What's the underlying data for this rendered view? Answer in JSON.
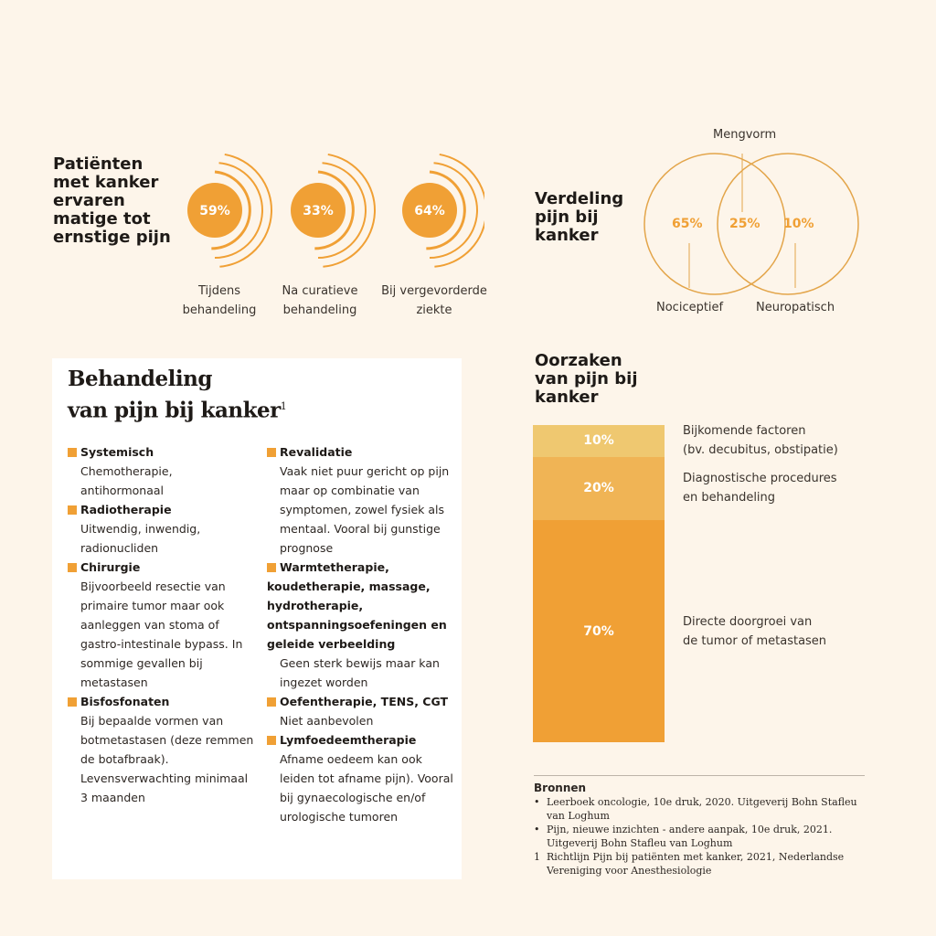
{
  "prevalence": {
    "title": "Patiënten met kanker ervaren matige tot ernstige pijn",
    "items": [
      {
        "value": "59%",
        "label": "Tijdens behandeling"
      },
      {
        "value": "33%",
        "label": "Na curatieve behandeling"
      },
      {
        "value": "64%",
        "label": "Bij vergevorderde ziekte"
      }
    ]
  },
  "distribution": {
    "title": "Verdeling pijn bij kanker",
    "left": {
      "value": "65%",
      "label": "Nociceptief"
    },
    "middle": {
      "value": "25%",
      "label": "Mengvorm"
    },
    "right": {
      "value": "10%",
      "label": "Neuropatisch"
    }
  },
  "treatment": {
    "title_line1": "Behandeling",
    "title_line2": "van pijn bij kanker",
    "footnote": "1",
    "col1": [
      {
        "heading": "Systemisch",
        "text": "Chemotherapie, antihormonaal"
      },
      {
        "heading": "Radiotherapie",
        "text": "Uitwendig, inwendig, radionucliden"
      },
      {
        "heading": "Chirurgie",
        "text": "Bijvoorbeeld resectie van primaire tumor maar ook aanleggen van stoma of gastro-intestinale bypass. In sommige gevallen bij metastasen"
      },
      {
        "heading": "Bisfosfonaten",
        "text": "Bij bepaalde vormen van botmetastasen (deze remmen de botafbraak). Levensverwachting minimaal 3 maanden"
      }
    ],
    "col2": [
      {
        "heading": "Revalidatie",
        "text": "Vaak niet puur gericht op pijn maar op combinatie van symptomen, zowel fysiek als mentaal. Vooral bij gunstige prognose"
      },
      {
        "heading": "Warmtetherapie, koudetherapie, massage, hydrotherapie, ontspanningsoefeningen en geleide verbeelding",
        "text": "Geen sterk bewijs maar kan ingezet worden"
      },
      {
        "heading": "Oefentherapie, TENS, CGT",
        "text": "Niet aanbevolen"
      },
      {
        "heading": "Lymfoedeemtherapie",
        "text": "Afname oedeem kan ook leiden tot afname pijn). Vooral bij gynaecologische en/of urologische tumoren"
      }
    ]
  },
  "causes": {
    "title": "Oorzaken van pijn bij kanker"
  },
  "sources": {
    "title": "Bronnen",
    "items": [
      {
        "marker": "•",
        "text": "Leerboek oncologie, 10e druk, 2020. Uitgeverij Bohn Stafleu van Loghum"
      },
      {
        "marker": "•",
        "text": "Pijn, nieuwe inzichten - andere aanpak, 10e druk, 2021. Uitgeverij Bohn Stafleu van Loghum"
      },
      {
        "marker": "1",
        "text": "Richtlijn Pijn bij patiënten met kanker, 2021, Nederlandse Vereniging voor Anesthesiologie"
      }
    ]
  },
  "colors": {
    "accent": "#f0a035",
    "bar_top": "#efc870",
    "bar_mid": "#f0b455",
    "bar_bottom": "#f0a035",
    "background": "#fdf5ea"
  },
  "chart_data": {
    "type": "bar",
    "title": "Oorzaken van pijn bij kanker",
    "stacked": true,
    "categories": [
      "Bijkomende factoren (bv. decubitus, obstipatie)",
      "Diagnostische procedures en behandeling",
      "Directe doorgroei van de tumor of metastasen"
    ],
    "values": [
      10,
      20,
      70
    ],
    "labels": [
      "10%",
      "20%",
      "70%"
    ],
    "legend_lines": [
      [
        "Bijkomende factoren",
        "(bv. decubitus, obstipatie)"
      ],
      [
        "Diagnostische procedures",
        "en behandeling"
      ],
      [
        "Directe doorgroei van",
        "de tumor of metastasen"
      ]
    ],
    "ylim": [
      0,
      100
    ]
  }
}
